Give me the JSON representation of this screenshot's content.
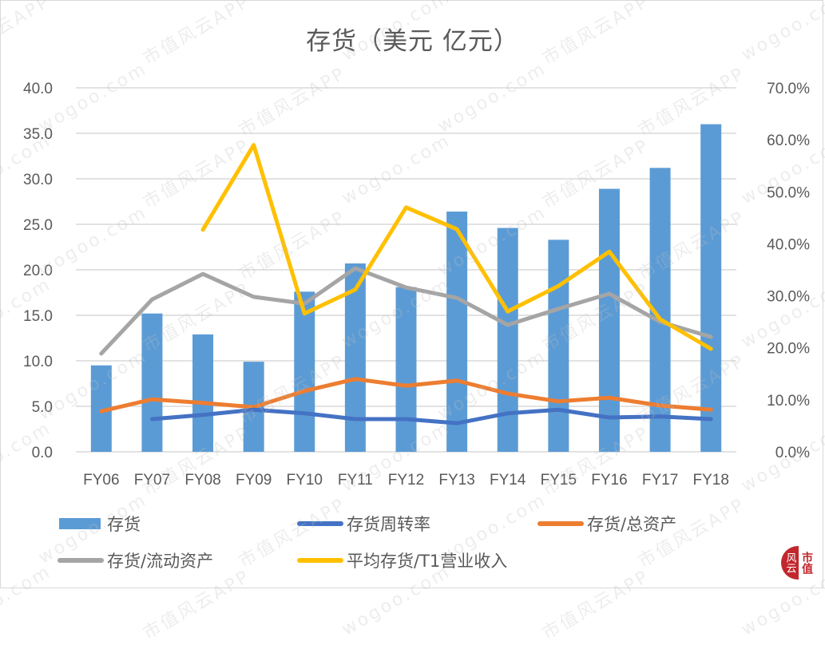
{
  "title": "存货（美元 亿元）",
  "watermark": {
    "text_cn": "市值风云APP",
    "text_en": "wogoo.com"
  },
  "logo": {
    "glyph": "风云",
    "text": "市值",
    "color": "#c1272d"
  },
  "colors": {
    "inventory_bar": "#5b9bd5",
    "turnover_line": "#4472c4",
    "inv_total_assets_line": "#ed7d31",
    "inv_current_assets_line": "#a5a5a5",
    "avg_inv_revenue_line": "#ffc000",
    "grid": "#d9d9d9",
    "text": "#595959"
  },
  "legend": [
    {
      "label": "存货",
      "type": "bar",
      "color": "#5b9bd5"
    },
    {
      "label": "存货周转率",
      "type": "line",
      "color": "#4472c4"
    },
    {
      "label": "存货/总资产",
      "type": "line",
      "color": "#ed7d31"
    },
    {
      "label": "存货/流动资产",
      "type": "line",
      "color": "#a5a5a5"
    },
    {
      "label": "平均存货/T1营业收入",
      "type": "line",
      "color": "#ffc000"
    }
  ],
  "chart_data": {
    "type": "bar+line",
    "title": "存货（美元 亿元）",
    "categories": [
      "FY06",
      "FY07",
      "FY08",
      "FY09",
      "FY10",
      "FY11",
      "FY12",
      "FY13",
      "FY14",
      "FY15",
      "FY16",
      "FY17",
      "FY18"
    ],
    "y_left": {
      "min": 0,
      "max": 40,
      "step": 5,
      "ticks": [
        "0.0",
        "5.0",
        "10.0",
        "15.0",
        "20.0",
        "25.0",
        "30.0",
        "35.0",
        "40.0"
      ]
    },
    "y_right": {
      "min": 0,
      "max": 70,
      "step": 10,
      "ticks": [
        "0.0%",
        "10.0%",
        "20.0%",
        "30.0%",
        "40.0%",
        "50.0%",
        "60.0%",
        "70.0%"
      ]
    },
    "grid": true,
    "legend_position": "bottom",
    "series": [
      {
        "name": "存货",
        "type": "bar",
        "axis": "left",
        "color": "#5b9bd5",
        "values": [
          9.5,
          15.2,
          12.9,
          9.9,
          17.6,
          20.7,
          18.1,
          26.4,
          24.6,
          23.3,
          28.9,
          31.2,
          36.0
        ]
      },
      {
        "name": "存货周转率",
        "type": "line",
        "axis": "right",
        "color": "#4472c4",
        "values": [
          null,
          6.3,
          7.1,
          8.1,
          7.4,
          6.3,
          6.3,
          5.5,
          7.4,
          8.1,
          6.6,
          6.8,
          6.3
        ]
      },
      {
        "name": "存货/总资产",
        "type": "line",
        "axis": "right",
        "color": "#ed7d31",
        "values": [
          7.8,
          10.1,
          9.4,
          8.6,
          11.7,
          14.0,
          12.7,
          13.7,
          11.2,
          9.7,
          10.4,
          8.9,
          8.1
        ]
      },
      {
        "name": "存货/流动资产",
        "type": "line",
        "axis": "right",
        "color": "#a5a5a5",
        "values": [
          18.9,
          29.3,
          34.2,
          29.8,
          28.5,
          35.3,
          31.6,
          29.6,
          24.4,
          27.5,
          30.4,
          25.0,
          22.1
        ]
      },
      {
        "name": "平均存货/T1营业收入",
        "type": "line",
        "axis": "right",
        "color": "#ffc000",
        "values": [
          null,
          null,
          42.7,
          59.0,
          26.6,
          31.2,
          47.0,
          42.8,
          27.0,
          31.9,
          38.5,
          25.5,
          19.8
        ]
      }
    ]
  }
}
